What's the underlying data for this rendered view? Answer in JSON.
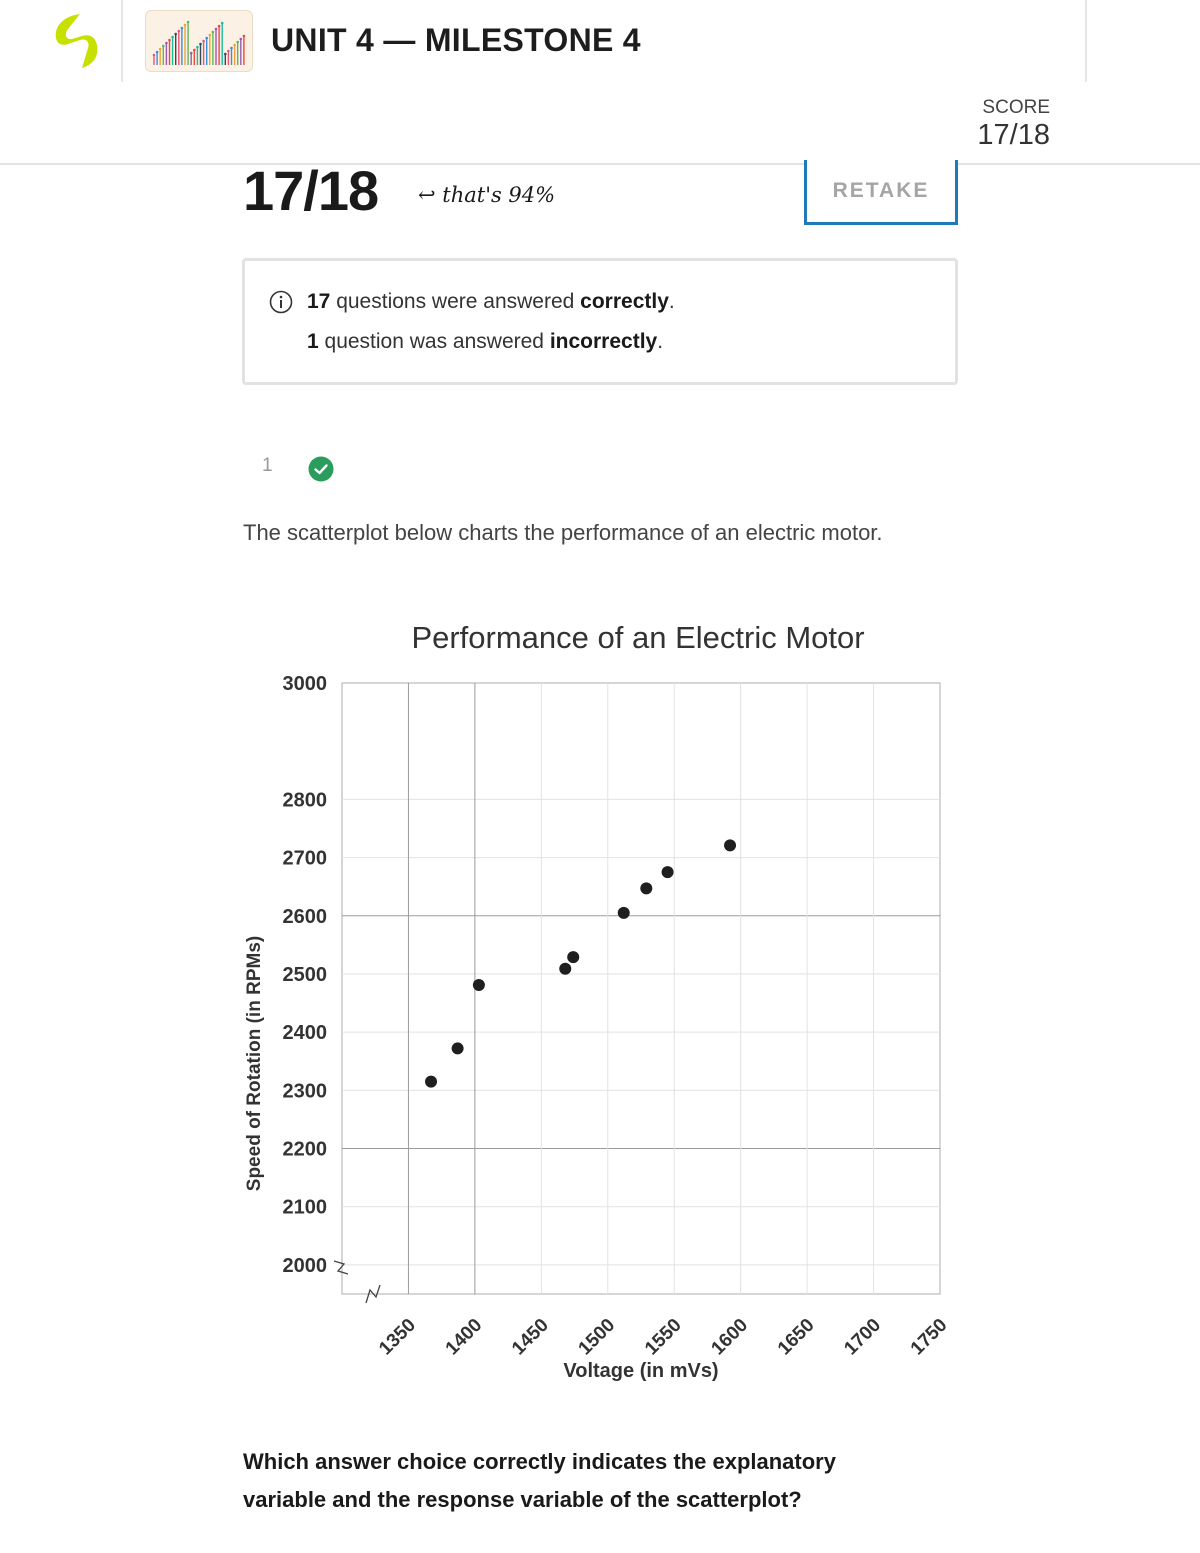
{
  "header": {
    "title": "UNIT 4 — MILESTONE 4",
    "score_label": "SCORE",
    "score_value": "17/18",
    "logo_color": "#c8e000",
    "logo_icon": "brand-logo-icon",
    "thumbnail_icon": "bar-chart-thumbnail-icon"
  },
  "result": {
    "score": "17/18",
    "note": "↩ that's 94%",
    "retake_label": "RETAKE",
    "accent_color": "#1f7bb8"
  },
  "summary": {
    "correct_count": "17",
    "correct_text": " questions were answered ",
    "correct_word": "correctly",
    "incorrect_count": "1",
    "incorrect_text": " question was answered ",
    "incorrect_word": "incorrectly",
    "period": "."
  },
  "question": {
    "number": "1",
    "status": "correct",
    "status_color": "#2a9d5c",
    "text": "The scatterplot below charts the performance of an electric motor.",
    "prompt": "Which answer choice correctly indicates the explanatory variable and the response variable of the scatterplot?"
  },
  "chart_data": {
    "type": "scatter",
    "title": "Performance of an Electric Motor",
    "xlabel": "Voltage (in mVs)",
    "ylabel": "Speed of Rotation (in RPMs)",
    "x_ticks": [
      1350,
      1400,
      1450,
      1500,
      1550,
      1600,
      1650,
      1700,
      1750
    ],
    "y_ticks": [
      2000,
      2100,
      2200,
      2300,
      2400,
      2500,
      2600,
      2700,
      2800,
      3000
    ],
    "xlim": [
      1300,
      1750
    ],
    "ylim": [
      1950,
      3000
    ],
    "axis_break": true,
    "grid": true,
    "points": [
      {
        "x": 1367,
        "y": 2315
      },
      {
        "x": 1387,
        "y": 2372
      },
      {
        "x": 1403,
        "y": 2481
      },
      {
        "x": 1468,
        "y": 2509
      },
      {
        "x": 1474,
        "y": 2529
      },
      {
        "x": 1512,
        "y": 2605
      },
      {
        "x": 1529,
        "y": 2647
      },
      {
        "x": 1545,
        "y": 2675
      },
      {
        "x": 1592,
        "y": 2721
      }
    ]
  }
}
